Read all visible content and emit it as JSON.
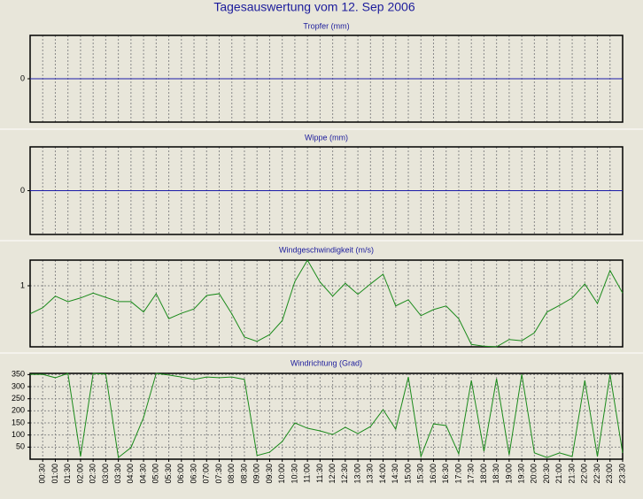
{
  "title": "Tagesauswertung vom 12. Sep 2006",
  "chart_data": [
    {
      "type": "line",
      "title": "Tropfer (mm)",
      "color": "#1a1aa8",
      "grid": true,
      "values": [
        0,
        0,
        0,
        0,
        0,
        0,
        0,
        0,
        0,
        0,
        0,
        0,
        0,
        0,
        0,
        0,
        0,
        0,
        0,
        0,
        0,
        0,
        0,
        0,
        0,
        0,
        0,
        0,
        0,
        0,
        0,
        0,
        0,
        0,
        0,
        0,
        0,
        0,
        0,
        0,
        0,
        0,
        0,
        0,
        0,
        0,
        0,
        0
      ],
      "ylim": [
        -1,
        1
      ],
      "yticks": [
        0
      ]
    },
    {
      "type": "line",
      "title": "Wippe (mm)",
      "color": "#1a1aa8",
      "grid": true,
      "values": [
        0,
        0,
        0,
        0,
        0,
        0,
        0,
        0,
        0,
        0,
        0,
        0,
        0,
        0,
        0,
        0,
        0,
        0,
        0,
        0,
        0,
        0,
        0,
        0,
        0,
        0,
        0,
        0,
        0,
        0,
        0,
        0,
        0,
        0,
        0,
        0,
        0,
        0,
        0,
        0,
        0,
        0,
        0,
        0,
        0,
        0,
        0,
        0
      ],
      "ylim": [
        -1,
        1
      ],
      "yticks": [
        0
      ]
    },
    {
      "type": "line",
      "title": "Windgeschwindigkeit (m/s)",
      "color": "#1a8a1a",
      "grid": true,
      "values": [
        0.54,
        0.64,
        0.83,
        0.74,
        0.8,
        0.88,
        0.81,
        0.74,
        0.74,
        0.57,
        0.87,
        0.46,
        0.55,
        0.62,
        0.84,
        0.87,
        0.54,
        0.16,
        0.09,
        0.2,
        0.43,
        1.07,
        1.42,
        1.06,
        0.83,
        1.04,
        0.86,
        1.03,
        1.19,
        0.67,
        0.77,
        0.51,
        0.61,
        0.67,
        0.46,
        0.04,
        0.01,
        0,
        0.12,
        0.1,
        0.23,
        0.57,
        0.68,
        0.8,
        1.03,
        0.71,
        1.25,
        0.88
      ],
      "ylim": [
        0,
        1.42
      ],
      "yticks": [
        1
      ]
    },
    {
      "type": "line",
      "title": "Windrichtung (Grad)",
      "color": "#1a8a1a",
      "grid": true,
      "categories": [
        null,
        "00:30",
        "01:00",
        "01:30",
        "02:00",
        "02:30",
        "03:00",
        "03:30",
        "04:00",
        "04:30",
        "05:00",
        "05:30",
        "06:00",
        "06:30",
        "07:00",
        "07:30",
        "08:00",
        "08:30",
        "09:00",
        "09:30",
        "10:00",
        "10:30",
        "11:00",
        "11:30",
        "12:00",
        "12:30",
        "13:00",
        "13:30",
        "14:00",
        "14:30",
        "15:00",
        "15:30",
        "16:00",
        "16:30",
        "17:00",
        "17:30",
        "18:00",
        "18:30",
        "19:00",
        "19:30",
        "20:00",
        "20:30",
        "21:00",
        "21:30",
        "22:00",
        "22:30",
        "23:00",
        "23:30"
      ],
      "values": [
        351,
        351,
        337,
        355,
        11,
        355,
        352,
        7,
        48,
        172,
        355,
        348,
        340,
        330,
        340,
        337,
        340,
        330,
        15,
        29,
        73,
        150,
        128,
        117,
        102,
        132,
        106,
        135,
        205,
        124,
        340,
        11,
        146,
        139,
        22,
        326,
        33,
        333,
        18,
        351,
        26,
        7,
        26,
        11,
        326,
        11,
        351,
        26
      ],
      "ylim": [
        0,
        355
      ],
      "yticks": [
        50,
        100,
        150,
        200,
        250,
        300,
        350
      ]
    }
  ]
}
